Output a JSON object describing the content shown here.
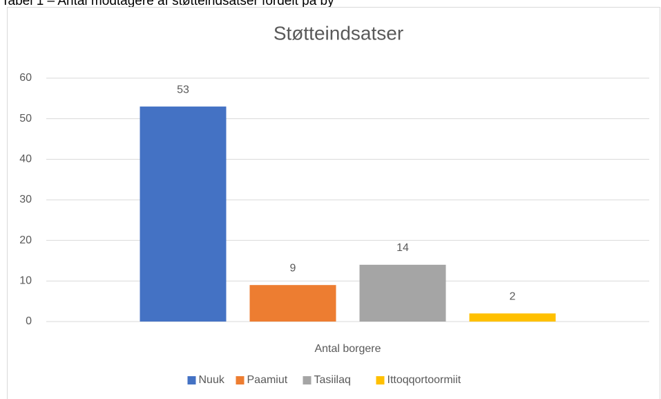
{
  "caption": "Tabel 1 – Antal modtagere af støtteindsatser fordelt på by",
  "chart_data": {
    "type": "bar",
    "title": "Støtteindsatser",
    "categories": [
      "Antal borgere"
    ],
    "series": [
      {
        "name": "Nuuk",
        "color": "#4472c4",
        "values": [
          53
        ]
      },
      {
        "name": "Paamiut",
        "color": "#ed7d31",
        "values": [
          9
        ]
      },
      {
        "name": "Tasiilaq",
        "color": "#a5a5a5",
        "values": [
          14
        ]
      },
      {
        "name": "Ittoqqortoormiit",
        "color": "#ffc000",
        "values": [
          2
        ]
      }
    ],
    "ylim": [
      0,
      60
    ],
    "yticks": [
      0,
      10,
      20,
      30,
      40,
      50,
      60
    ],
    "grid": true,
    "legend": "bottom",
    "data_labels": true
  }
}
